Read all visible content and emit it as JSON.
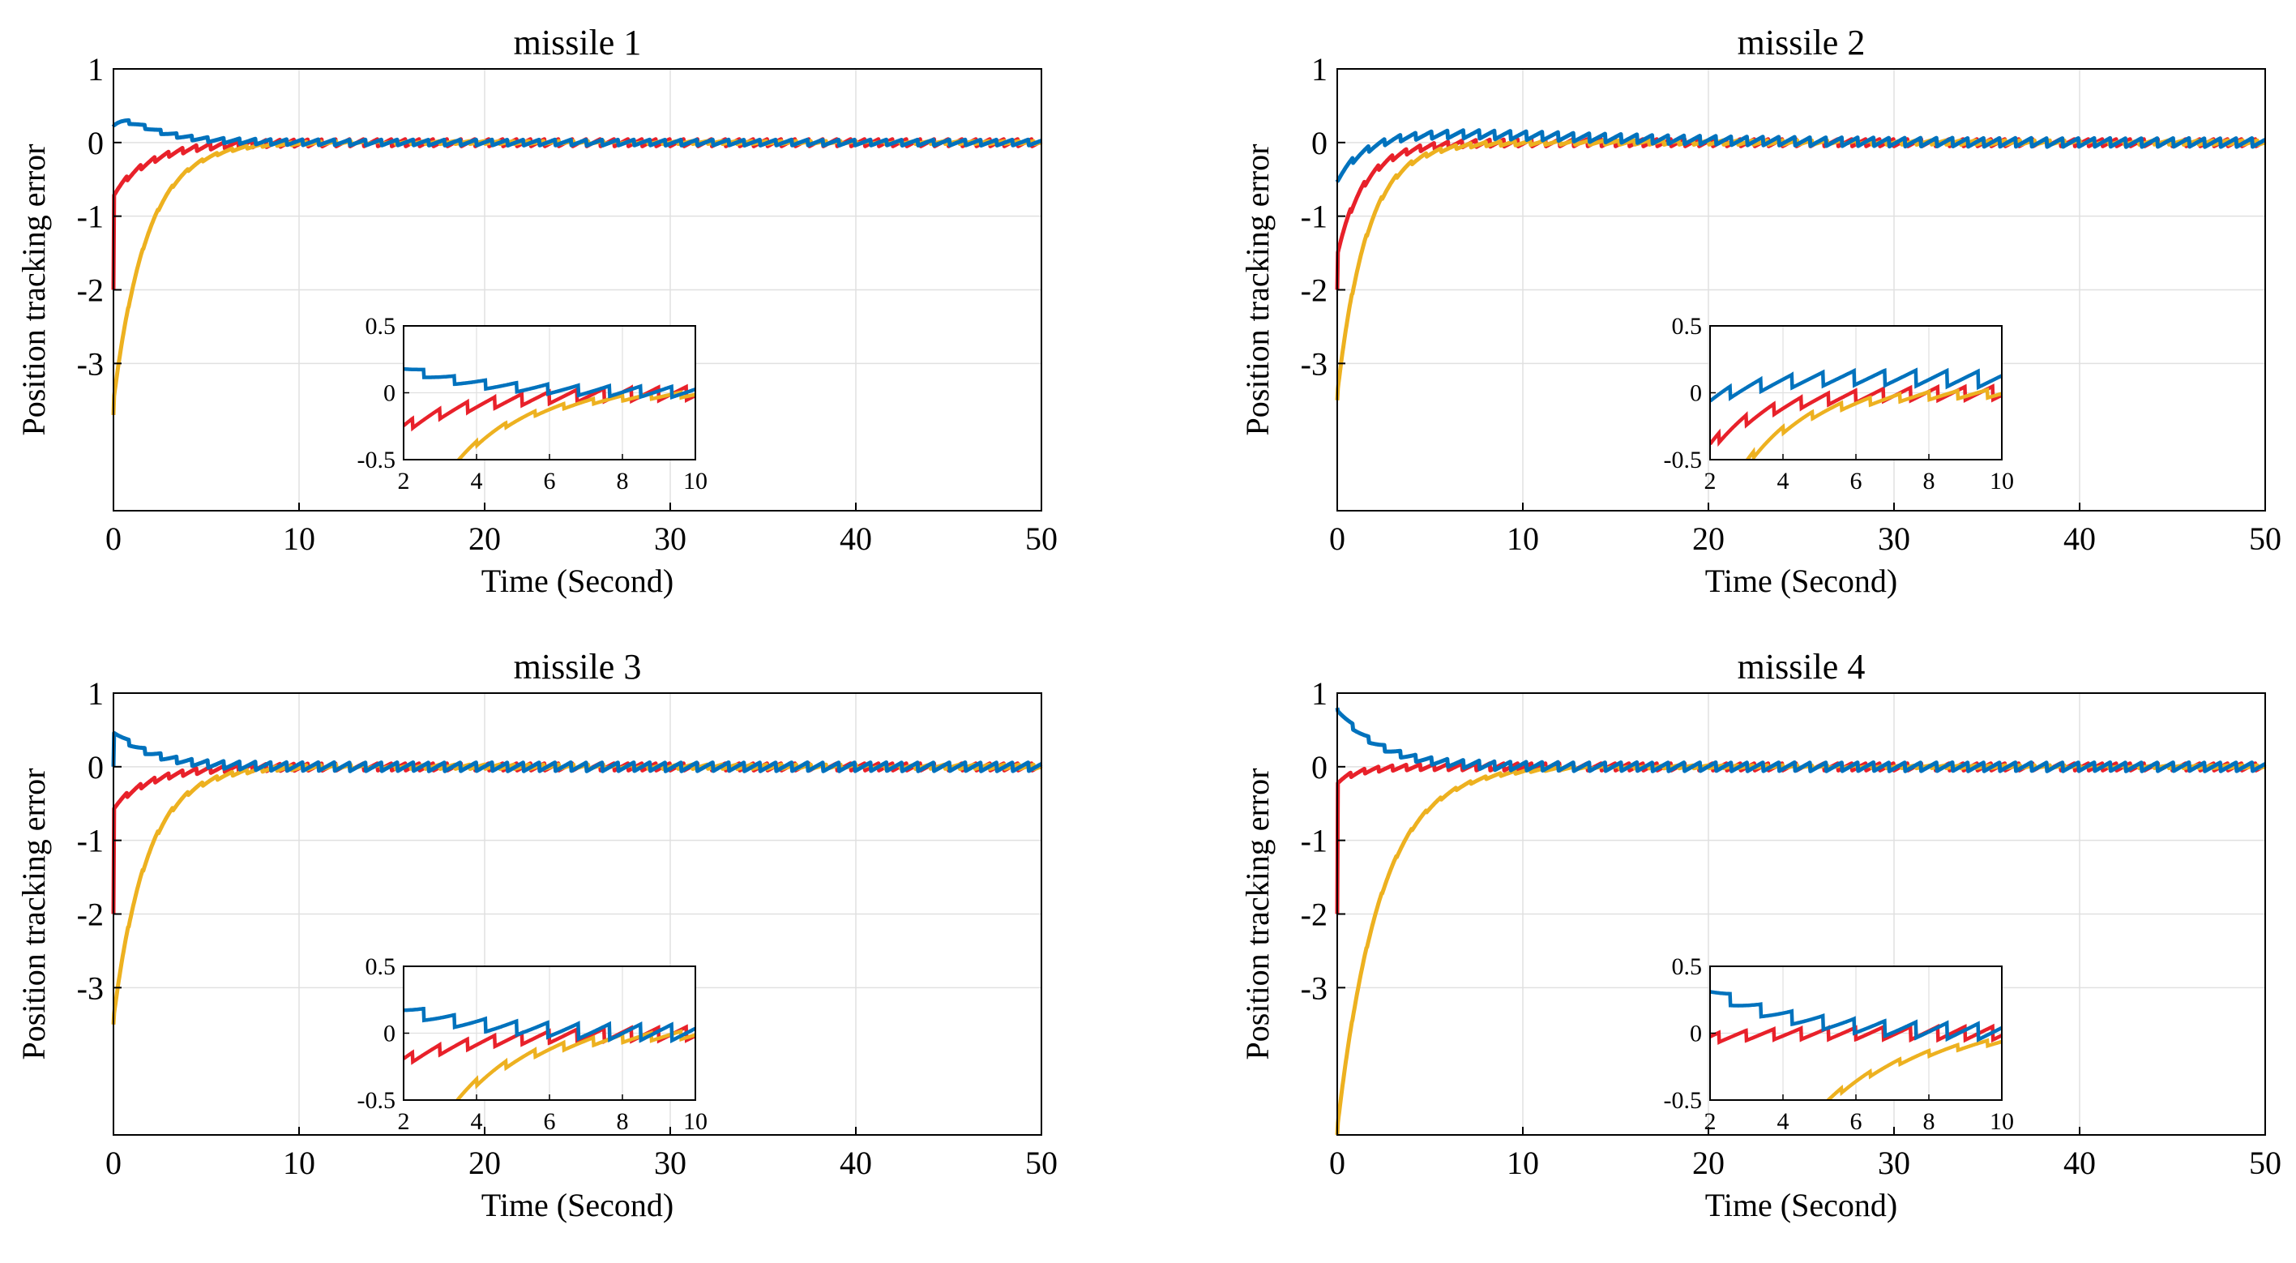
{
  "figure": {
    "ylabel": "Position tracking error",
    "xlabel": "Time (Second)",
    "series_colors": {
      "red": "#e8212a",
      "orange": "#edb120",
      "blue": "#0072bd"
    },
    "grid_color": "#e0e0e0"
  },
  "chart_data": [
    {
      "type": "line",
      "title": "missile 1",
      "xlabel": "Time (Second)",
      "ylabel": "Position tracking error",
      "xlim": [
        0,
        50
      ],
      "ylim": [
        -5,
        1
      ],
      "xticks": [
        0,
        10,
        20,
        30,
        40,
        50
      ],
      "yticks": [
        1,
        0,
        -1,
        -2,
        -3
      ],
      "xtick_labels": [
        "0",
        "10",
        "20",
        "30",
        "40",
        "50"
      ],
      "ytick_labels": [
        "1",
        "0",
        "-1",
        "-2",
        "-3"
      ],
      "grid": true,
      "series": [
        {
          "name": "red",
          "start": -2.0,
          "jump_to": -0.7,
          "tau": 2.0,
          "osc": 0.05,
          "hump": 0,
          "hump_t": 1
        },
        {
          "name": "orange",
          "start": -3.7,
          "jump_to": -3.5,
          "tau": 1.8,
          "osc": 0.02,
          "hump": 0,
          "hump_t": 1
        },
        {
          "name": "blue",
          "start": 0.25,
          "jump_to": 0.25,
          "tau": 2.5,
          "osc": 0.04,
          "hump": 0.1,
          "hump_t": 1.0
        }
      ],
      "inset": {
        "xlim": [
          2,
          10
        ],
        "ylim": [
          -0.5,
          0.5
        ],
        "xticks": [
          2,
          4,
          6,
          8,
          10
        ],
        "yticks": [
          0.5,
          0,
          -0.5
        ],
        "xtick_labels": [
          "2",
          "4",
          "6",
          "8",
          "10"
        ],
        "ytick_labels": [
          "0.5",
          "0",
          "-0.5"
        ]
      }
    },
    {
      "type": "line",
      "title": "missile 2",
      "xlabel": "Time (Second)",
      "ylabel": "Position tracking error",
      "xlim": [
        0,
        50
      ],
      "ylim": [
        -5,
        1
      ],
      "xticks": [
        0,
        10,
        20,
        30,
        40,
        50
      ],
      "yticks": [
        1,
        0,
        -1,
        -2,
        -3
      ],
      "xtick_labels": [
        "0",
        "10",
        "20",
        "30",
        "40",
        "50"
      ],
      "ytick_labels": [
        "1",
        "0",
        "-1",
        "-2",
        "-3"
      ],
      "grid": true,
      "series": [
        {
          "name": "red",
          "start": -2.0,
          "jump_to": -1.5,
          "tau": 1.5,
          "osc": 0.05,
          "hump": 0,
          "hump_t": 1
        },
        {
          "name": "orange",
          "start": -3.5,
          "jump_to": -3.4,
          "tau": 1.6,
          "osc": 0.03,
          "hump": 0,
          "hump_t": 1
        },
        {
          "name": "blue",
          "start": -0.5,
          "jump_to": -0.5,
          "tau": 1.5,
          "osc": 0.06,
          "hump": 0.12,
          "hump_t": 5.5
        }
      ],
      "inset": {
        "xlim": [
          2,
          10
        ],
        "ylim": [
          -0.5,
          0.5
        ],
        "xticks": [
          2,
          4,
          6,
          8,
          10
        ],
        "yticks": [
          0.5,
          0,
          -0.5
        ],
        "xtick_labels": [
          "2",
          "4",
          "6",
          "8",
          "10"
        ],
        "ytick_labels": [
          "0.5",
          "0",
          "-0.5"
        ]
      }
    },
    {
      "type": "line",
      "title": "missile 3",
      "xlabel": "Time (Second)",
      "ylabel": "Position tracking error",
      "xlim": [
        0,
        50
      ],
      "ylim": [
        -5,
        1
      ],
      "xticks": [
        0,
        10,
        20,
        30,
        40,
        50
      ],
      "yticks": [
        1,
        0,
        -1,
        -2,
        -3
      ],
      "xtick_labels": [
        "0",
        "10",
        "20",
        "30",
        "40",
        "50"
      ],
      "ytick_labels": [
        "1",
        "0",
        "-1",
        "-2",
        "-3"
      ],
      "grid": true,
      "series": [
        {
          "name": "red",
          "start": -2.0,
          "jump_to": -0.55,
          "tau": 2.0,
          "osc": 0.05,
          "hump": 0,
          "hump_t": 1
        },
        {
          "name": "orange",
          "start": -3.5,
          "jump_to": -3.4,
          "tau": 1.8,
          "osc": 0.03,
          "hump": 0,
          "hump_t": 1
        },
        {
          "name": "blue",
          "start": 0.0,
          "jump_to": 0.5,
          "tau": 2.0,
          "osc": 0.06,
          "hump": 0,
          "hump_t": 1
        }
      ],
      "inset": {
        "xlim": [
          2,
          10
        ],
        "ylim": [
          -0.5,
          0.5
        ],
        "xticks": [
          2,
          4,
          6,
          8,
          10
        ],
        "yticks": [
          0.5,
          0,
          -0.5
        ],
        "xtick_labels": [
          "2",
          "4",
          "6",
          "8",
          "10"
        ],
        "ytick_labels": [
          "0.5",
          "0",
          "-0.5"
        ]
      }
    },
    {
      "type": "line",
      "title": "missile 4",
      "xlabel": "Time (Second)",
      "ylabel": "Position tracking error",
      "xlim": [
        0,
        50
      ],
      "ylim": [
        -5,
        1
      ],
      "xticks": [
        0,
        10,
        20,
        30,
        40,
        50
      ],
      "yticks": [
        1,
        0,
        -1,
        -2,
        -3
      ],
      "xtick_labels": [
        "0",
        "10",
        "20",
        "30",
        "40",
        "50"
      ],
      "ytick_labels": [
        "1",
        "0",
        "-1",
        "-2",
        "-3"
      ],
      "grid": true,
      "series": [
        {
          "name": "red",
          "start": -2.0,
          "jump_to": -0.2,
          "tau": 1.2,
          "osc": 0.05,
          "hump": 0,
          "hump_t": 1
        },
        {
          "name": "orange",
          "start": -5.0,
          "jump_to": -4.9,
          "tau": 2.3,
          "osc": 0.02,
          "hump": 0,
          "hump_t": 1
        },
        {
          "name": "blue",
          "start": 0.8,
          "jump_to": 0.8,
          "tau": 2.2,
          "osc": 0.06,
          "hump": 0,
          "hump_t": 1
        }
      ],
      "inset": {
        "xlim": [
          2,
          10
        ],
        "ylim": [
          -0.5,
          0.5
        ],
        "xticks": [
          2,
          4,
          6,
          8,
          10
        ],
        "yticks": [
          0.5,
          0,
          -0.5
        ],
        "xtick_labels": [
          "2",
          "4",
          "6",
          "8",
          "10"
        ],
        "ytick_labels": [
          "0.5",
          "0",
          "-0.5"
        ]
      }
    }
  ]
}
